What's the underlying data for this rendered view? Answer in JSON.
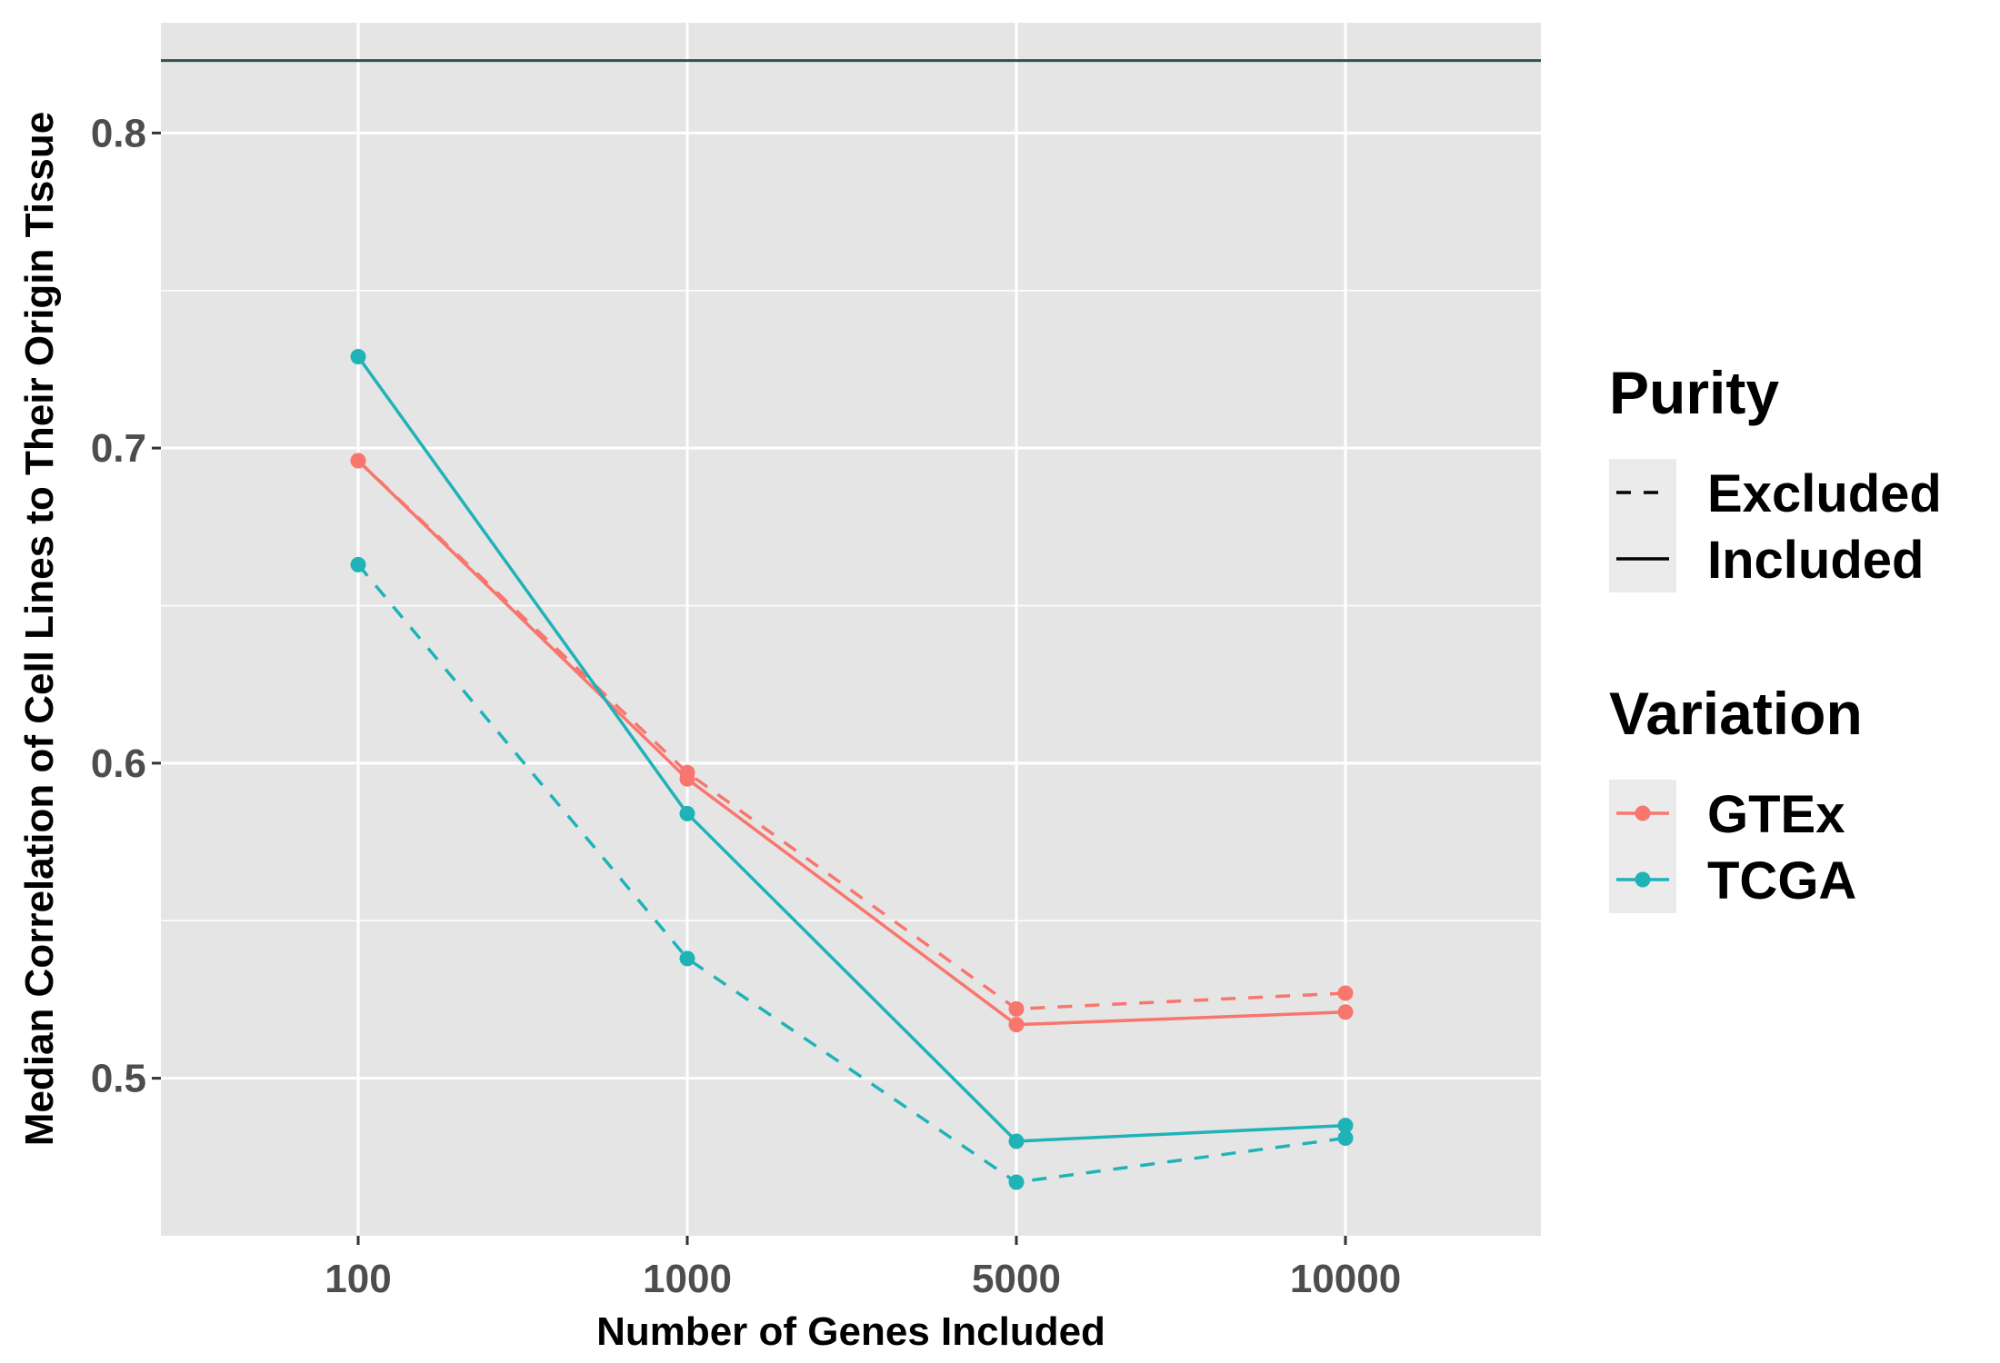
{
  "chart_data": {
    "type": "line",
    "xlabel": "Number of Genes Included",
    "ylabel": "Median Correlation of Cell Lines to Their Origin Tissue",
    "categories": [
      "100",
      "1000",
      "5000",
      "10000"
    ],
    "ylim": [
      0.45,
      0.835
    ],
    "y_ticks": [
      "0.5",
      "0.6",
      "0.7",
      "0.8"
    ],
    "grid": true,
    "reference_line": {
      "y": 0.823,
      "linetype": "Included",
      "color": "#2f4f4f"
    },
    "series": [
      {
        "variation": "GTEx",
        "purity": "Included",
        "color": "#f8766d",
        "values": [
          0.696,
          0.595,
          0.517,
          0.521
        ]
      },
      {
        "variation": "GTEx",
        "purity": "Excluded",
        "color": "#f8766d",
        "values": [
          0.696,
          0.597,
          0.522,
          0.527
        ]
      },
      {
        "variation": "TCGA",
        "purity": "Included",
        "color": "#1fb3b8",
        "values": [
          0.729,
          0.584,
          0.48,
          0.485
        ]
      },
      {
        "variation": "TCGA",
        "purity": "Excluded",
        "color": "#1fb3b8",
        "values": [
          0.663,
          0.538,
          0.467,
          0.481
        ]
      }
    ],
    "legend": {
      "placement": "right",
      "groups": [
        {
          "title": "Purity",
          "entries": [
            {
              "label": "Excluded",
              "linetype": "dashed",
              "color": "#000000"
            },
            {
              "label": "Included",
              "linetype": "solid",
              "color": "#000000"
            }
          ]
        },
        {
          "title": "Variation",
          "entries": [
            {
              "label": "GTEx",
              "color": "#f8766d"
            },
            {
              "label": "TCGA",
              "color": "#1fb3b8"
            }
          ]
        }
      ]
    }
  }
}
